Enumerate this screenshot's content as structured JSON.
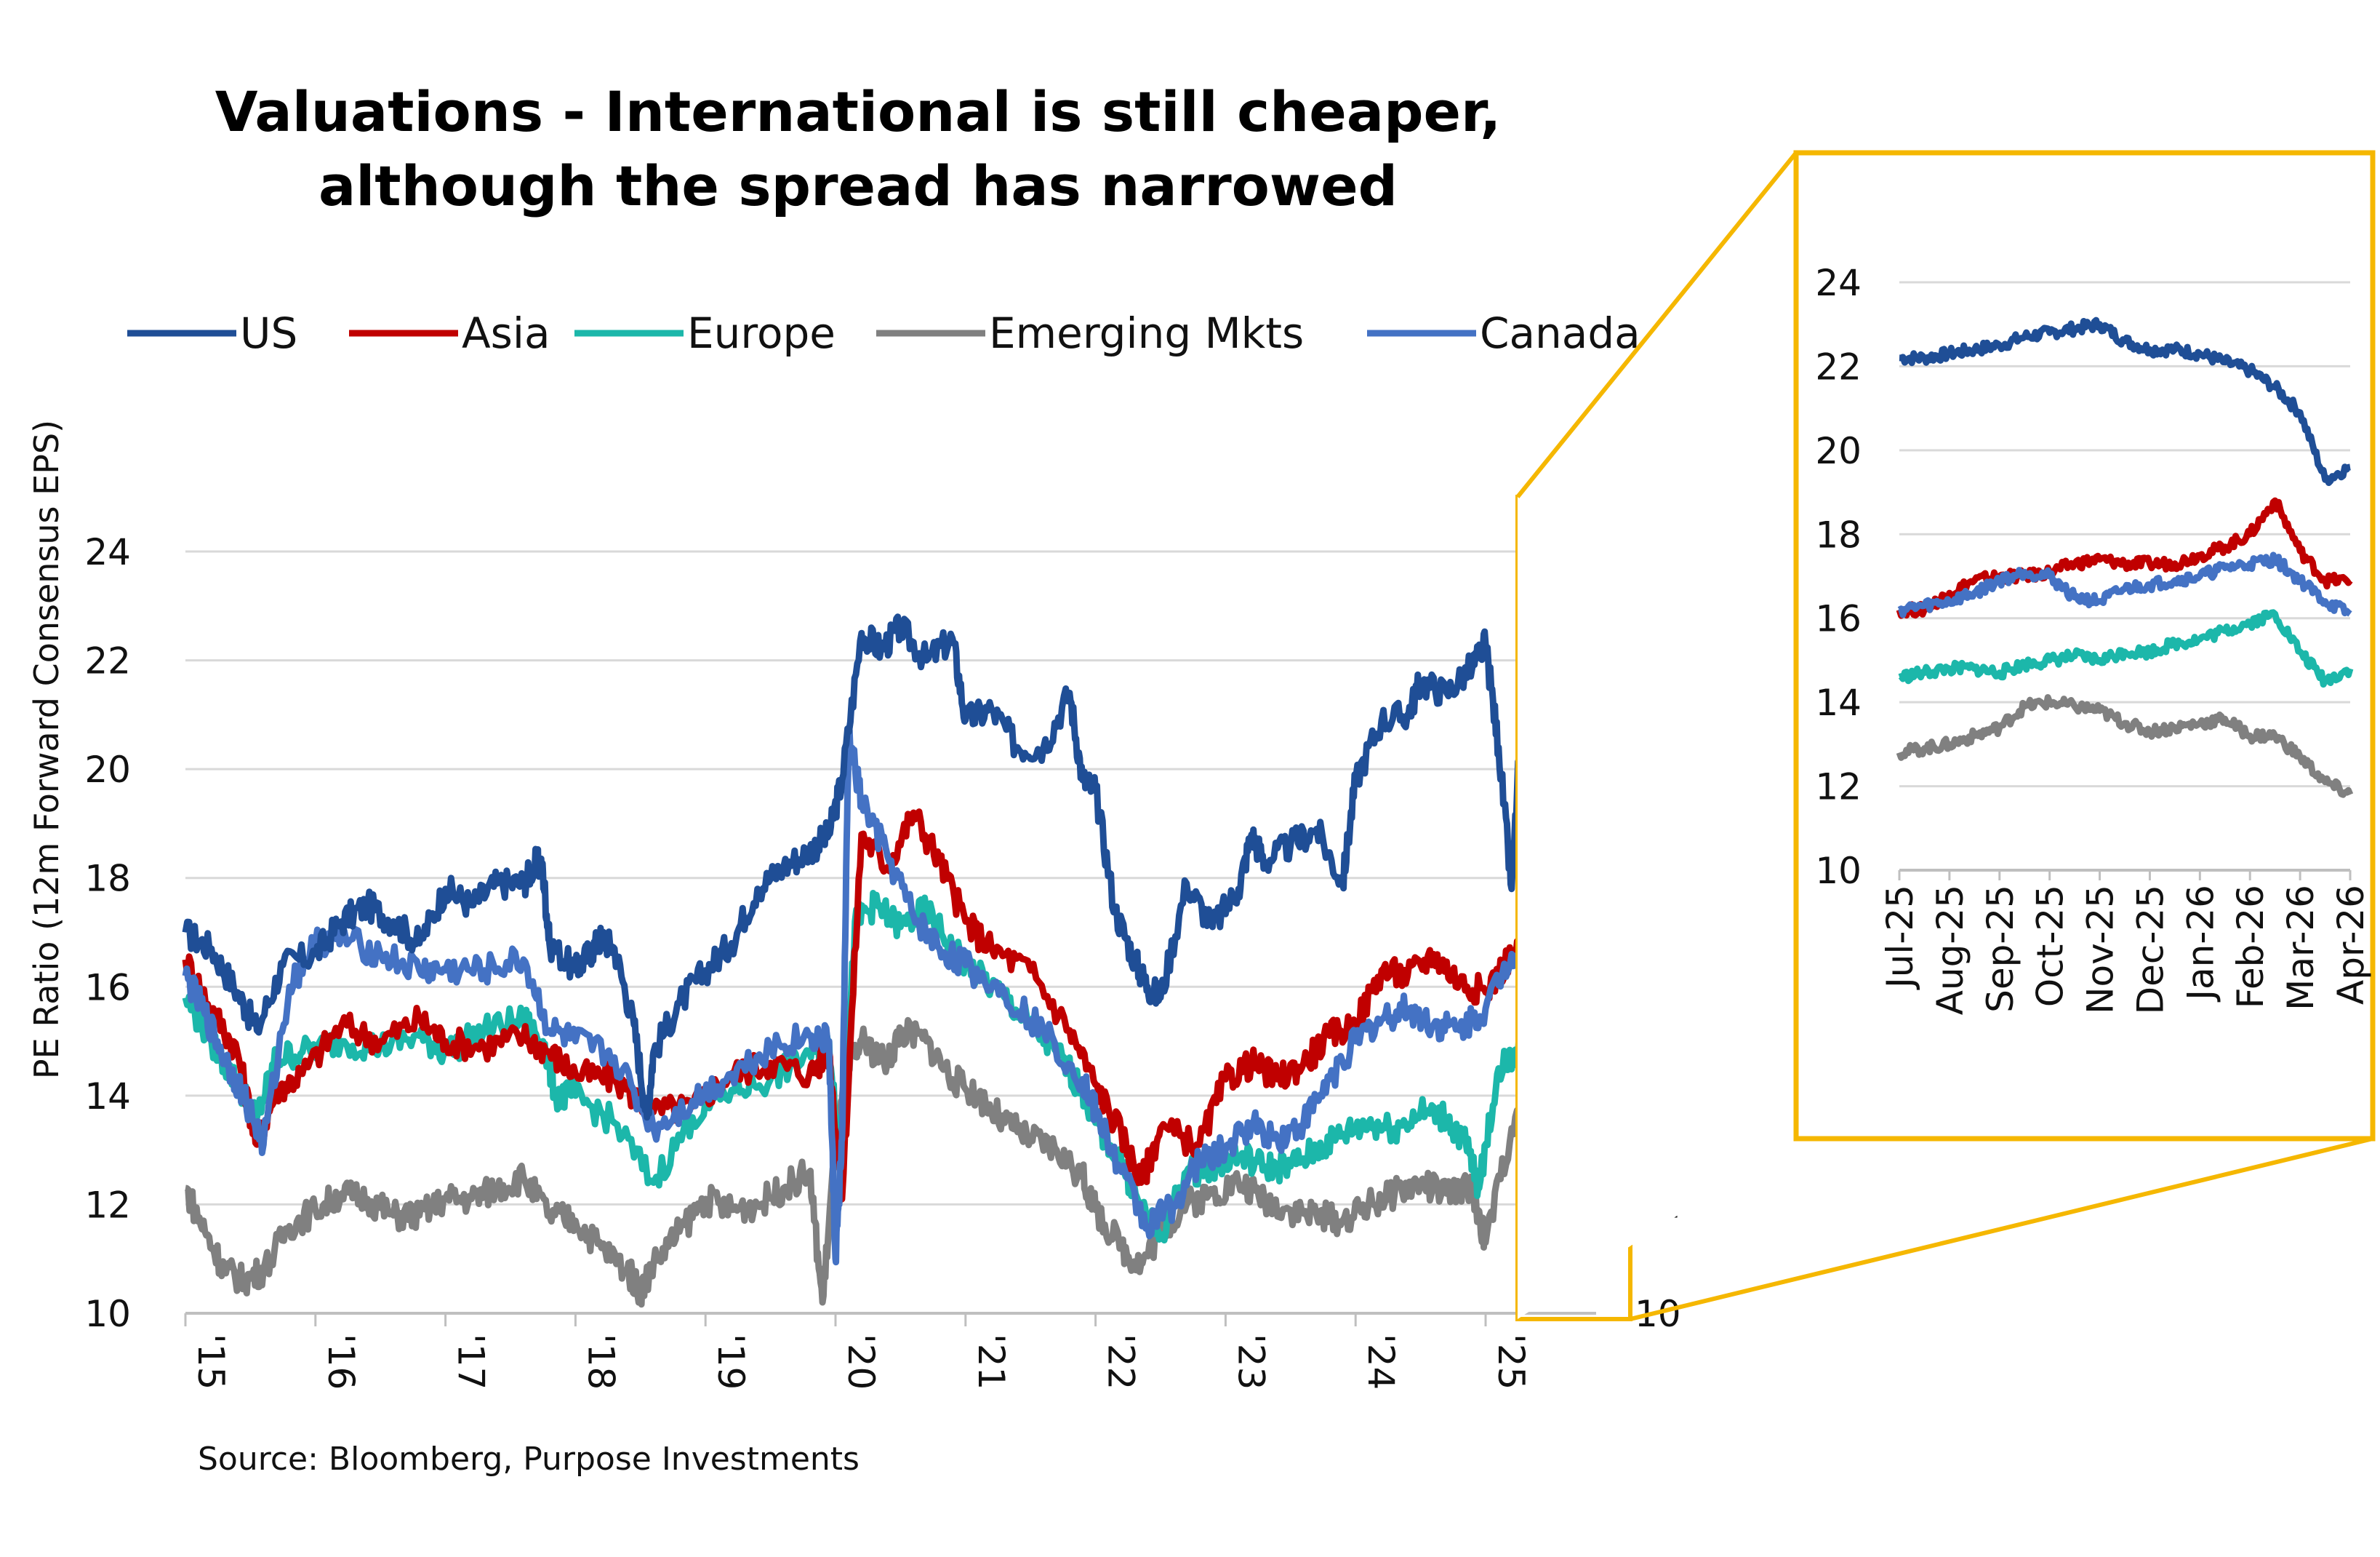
{
  "chart_data": [
    {
      "type": "line",
      "title": "Valuations - International is still cheaper, although the spread has narrowed",
      "title_lines": [
        "Valuations - International is still cheaper,",
        "although the spread has narrowed"
      ],
      "ylabel": "PE Ratio  (12m Forward Consensus EPS)",
      "xlabel": "",
      "ylim": [
        10,
        24
      ],
      "yticks": [
        "10",
        "12",
        "14",
        "16",
        "18",
        "20",
        "22",
        "24"
      ],
      "right_yticks": [
        "10",
        "12",
        "14",
        "16",
        "18",
        "20",
        "22",
        "24"
      ],
      "xticks": [
        "'15",
        "'16",
        "'17",
        "'18",
        "'19",
        "'20",
        "'21",
        "'22",
        "'23",
        "'24",
        "'25"
      ],
      "grid": "horizontal",
      "legend_position": "top",
      "source": "Source: Bloomberg, Purpose Investments",
      "series": [
        {
          "name": "US",
          "color": "#1F4E96",
          "x": [
            2015.0,
            2015.2,
            2015.4,
            2015.55,
            2015.75,
            2016.0,
            2016.2,
            2016.4,
            2016.6,
            2016.8,
            2017.0,
            2017.2,
            2017.4,
            2017.6,
            2017.7,
            2017.75,
            2017.8,
            2018.0,
            2018.1,
            2018.2,
            2018.3,
            2018.45,
            2018.55,
            2018.6,
            2018.8,
            2019.0,
            2019.2,
            2019.4,
            2019.6,
            2019.8,
            2019.95,
            2020.05,
            2020.2,
            2020.35,
            2020.5,
            2020.7,
            2020.9,
            2021.0,
            2021.2,
            2021.4,
            2021.6,
            2021.8,
            2021.9,
            2022.0,
            2022.15,
            2022.3,
            2022.4,
            2022.5,
            2022.7,
            2022.9,
            2023.1,
            2023.2,
            2023.3,
            2023.5,
            2023.7,
            2023.9,
            2024.0,
            2024.2,
            2024.4,
            2024.5,
            2024.7,
            2024.9,
            2025.0,
            2025.1,
            2025.2,
            2025.3,
            2025.4,
            2025.55,
            2025.7,
            2025.75,
            2025.8
          ],
          "values": [
            17.0,
            16.7,
            15.9,
            15.2,
            16.4,
            16.6,
            17.2,
            17.5,
            17.2,
            16.8,
            17.8,
            17.5,
            17.9,
            17.9,
            18.3,
            18.1,
            16.8,
            16.3,
            16.6,
            16.9,
            16.7,
            15.3,
            13.6,
            14.8,
            15.7,
            16.3,
            16.8,
            17.8,
            18.2,
            18.5,
            18.8,
            19.8,
            22.5,
            22.2,
            22.6,
            22.0,
            22.4,
            20.9,
            21.1,
            20.4,
            20.4,
            21.4,
            19.8,
            19.6,
            17.4,
            16.5,
            16.0,
            15.8,
            17.9,
            17.1,
            17.8,
            18.8,
            18.3,
            18.6,
            18.9,
            17.9,
            19.8,
            20.9,
            21.0,
            21.6,
            21.4,
            21.9,
            22.3,
            20.4,
            17.8,
            22.0,
            22.7,
            22.9,
            22.3,
            21.1,
            19.3
          ]
        },
        {
          "name": "Asia",
          "color": "#C00000",
          "x": [
            2015.0,
            2015.2,
            2015.4,
            2015.55,
            2015.7,
            2015.9,
            2016.2,
            2016.5,
            2016.8,
            2017.0,
            2017.3,
            2017.6,
            2017.8,
            2018.0,
            2018.3,
            2018.6,
            2018.9,
            2019.2,
            2019.5,
            2019.8,
            2019.95,
            2020.05,
            2020.2,
            2020.4,
            2020.6,
            2020.8,
            2021.0,
            2021.2,
            2021.5,
            2021.8,
            2022.0,
            2022.2,
            2022.35,
            2022.5,
            2022.8,
            2023.0,
            2023.2,
            2023.4,
            2023.6,
            2023.8,
            2024.0,
            2024.2,
            2024.4,
            2024.6,
            2024.8,
            2025.0,
            2025.2,
            2025.4,
            2025.6,
            2025.7,
            2025.8
          ],
          "values": [
            16.5,
            15.6,
            14.8,
            13.1,
            14.1,
            14.4,
            15.3,
            15.0,
            15.4,
            15.0,
            14.9,
            15.1,
            14.8,
            14.4,
            14.3,
            13.7,
            13.8,
            14.4,
            14.6,
            14.4,
            14.8,
            12.1,
            18.8,
            18.2,
            19.2,
            18.3,
            17.2,
            16.7,
            16.3,
            15.2,
            14.2,
            13.3,
            12.4,
            13.4,
            13.1,
            14.3,
            14.6,
            14.3,
            14.6,
            15.1,
            15.3,
            16.3,
            16.2,
            16.6,
            16.1,
            15.9,
            16.6,
            16.9,
            17.3,
            18.2,
            16.4
          ]
        },
        {
          "name": "Europe",
          "color": "#1CB7AA",
          "x": [
            2015.0,
            2015.2,
            2015.4,
            2015.55,
            2015.7,
            2015.9,
            2016.2,
            2016.5,
            2016.8,
            2017.0,
            2017.3,
            2017.6,
            2017.75,
            2017.85,
            2018.0,
            2018.3,
            2018.6,
            2018.9,
            2019.2,
            2019.5,
            2019.8,
            2019.95,
            2020.05,
            2020.15,
            2020.3,
            2020.5,
            2020.7,
            2020.9,
            2021.1,
            2021.3,
            2021.5,
            2021.7,
            2021.9,
            2022.0,
            2022.2,
            2022.35,
            2022.5,
            2022.7,
            2022.9,
            2023.1,
            2023.3,
            2023.5,
            2023.7,
            2023.9,
            2024.1,
            2024.3,
            2024.5,
            2024.7,
            2024.85,
            2024.95,
            2025.1,
            2025.3,
            2025.5,
            2025.65,
            2025.75,
            2025.8
          ],
          "values": [
            15.8,
            15.0,
            14.2,
            13.6,
            14.7,
            14.8,
            15.0,
            14.9,
            15.1,
            14.8,
            15.2,
            15.4,
            15.0,
            14.0,
            14.0,
            13.5,
            12.4,
            13.6,
            14.1,
            14.3,
            14.8,
            15.0,
            12.5,
            17.2,
            17.5,
            17.1,
            17.4,
            16.7,
            16.2,
            15.8,
            15.3,
            14.8,
            14.1,
            13.5,
            12.8,
            11.9,
            11.4,
            12.6,
            12.7,
            12.9,
            12.7,
            12.7,
            13.0,
            13.3,
            13.5,
            13.4,
            13.7,
            13.6,
            13.1,
            12.3,
            14.5,
            14.9,
            15.3,
            15.8,
            16.0,
            14.6
          ]
        },
        {
          "name": "Emerging Mkts",
          "color": "#808080",
          "x": [
            2015.0,
            2015.15,
            2015.3,
            2015.45,
            2015.6,
            2015.8,
            2016.0,
            2016.2,
            2016.4,
            2016.6,
            2016.8,
            2017.0,
            2017.2,
            2017.4,
            2017.6,
            2017.8,
            2018.0,
            2018.2,
            2018.4,
            2018.5,
            2018.6,
            2018.8,
            2019.0,
            2019.2,
            2019.4,
            2019.6,
            2019.8,
            2019.9,
            2020.0,
            2020.1,
            2020.2,
            2020.4,
            2020.5,
            2020.7,
            2020.9,
            2021.1,
            2021.3,
            2021.5,
            2021.7,
            2021.9,
            2022.0,
            2022.2,
            2022.35,
            2022.5,
            2022.7,
            2022.9,
            2023.1,
            2023.3,
            2023.5,
            2023.7,
            2023.9,
            2024.1,
            2024.3,
            2024.5,
            2024.7,
            2024.9,
            2025.0,
            2025.2,
            2025.4,
            2025.5,
            2025.6,
            2025.7,
            2025.8
          ],
          "values": [
            12.3,
            11.5,
            10.8,
            10.6,
            10.8,
            11.6,
            11.9,
            12.2,
            12.1,
            11.8,
            11.8,
            12.1,
            12.1,
            12.3,
            12.5,
            11.8,
            11.7,
            11.2,
            10.8,
            10.4,
            10.9,
            11.5,
            12.1,
            11.9,
            12.0,
            12.3,
            12.6,
            10.2,
            13.1,
            14.5,
            15.0,
            14.6,
            15.2,
            15.0,
            14.3,
            14.0,
            13.5,
            13.2,
            13.0,
            12.5,
            11.9,
            11.2,
            10.9,
            11.5,
            12.0,
            12.2,
            12.4,
            12.1,
            11.9,
            11.8,
            11.7,
            12.0,
            12.2,
            12.4,
            12.2,
            12.3,
            11.3,
            13.4,
            13.8,
            13.6,
            13.3,
            13.0,
            11.8
          ]
        },
        {
          "name": "Canada",
          "color": "#4472C4",
          "x": [
            2015.0,
            2015.15,
            2015.3,
            2015.45,
            2015.6,
            2015.8,
            2016.0,
            2016.2,
            2016.5,
            2016.8,
            2017.0,
            2017.3,
            2017.6,
            2017.8,
            2018.0,
            2018.3,
            2018.6,
            2018.9,
            2019.2,
            2019.5,
            2019.8,
            2019.95,
            2020.0,
            2020.05,
            2020.1,
            2020.2,
            2020.4,
            2020.6,
            2020.8,
            2021.0,
            2021.3,
            2021.6,
            2021.9,
            2022.0,
            2022.2,
            2022.4,
            2022.6,
            2022.8,
            2023.0,
            2023.2,
            2023.4,
            2023.6,
            2023.8,
            2024.0,
            2024.2,
            2024.4,
            2024.6,
            2024.8,
            2025.0,
            2025.2,
            2025.4,
            2025.6,
            2025.7,
            2025.8
          ],
          "values": [
            16.2,
            15.5,
            14.7,
            14.0,
            13.1,
            16.0,
            16.8,
            16.9,
            16.6,
            16.3,
            16.3,
            16.3,
            16.5,
            15.2,
            15.0,
            14.7,
            13.4,
            13.9,
            14.4,
            14.9,
            15.1,
            15.0,
            11.0,
            13.2,
            20.6,
            19.4,
            18.4,
            17.3,
            16.7,
            16.4,
            15.9,
            15.2,
            14.3,
            13.7,
            12.6,
            11.6,
            12.0,
            12.8,
            13.0,
            13.5,
            13.2,
            13.5,
            14.3,
            15.0,
            15.4,
            15.6,
            15.3,
            15.2,
            15.6,
            16.6,
            16.9,
            17.3,
            16.9,
            16.3
          ]
        }
      ]
    },
    {
      "type": "line",
      "title": "",
      "ylim": [
        10,
        24
      ],
      "yticks": [
        "10",
        "12",
        "14",
        "16",
        "18",
        "20",
        "22",
        "24"
      ],
      "xticks": [
        "Jul-25",
        "Aug-25",
        "Sep-25",
        "Oct-25",
        "Nov-25",
        "Dec-25",
        "Jan-26",
        "Feb-26",
        "Mar-26",
        "Apr-26"
      ],
      "grid": "horizontal",
      "series": [
        {
          "name": "US",
          "color": "#1F4E96",
          "x": [
            0,
            0.5,
            1,
            1.5,
            2,
            2.5,
            3,
            3.5,
            4,
            4.5,
            5,
            5.5,
            6,
            6.5,
            7,
            7.5,
            8,
            8.5,
            9
          ],
          "values": [
            22.2,
            22.2,
            22.3,
            22.4,
            22.5,
            22.7,
            22.8,
            22.9,
            23.0,
            22.6,
            22.4,
            22.4,
            22.3,
            22.1,
            21.9,
            21.5,
            20.9,
            19.3,
            19.6
          ]
        },
        {
          "name": "Asia",
          "color": "#C00000",
          "x": [
            0,
            0.5,
            1,
            1.5,
            2,
            2.5,
            3,
            3.5,
            4,
            4.5,
            5,
            5.5,
            6,
            6.5,
            7,
            7.5,
            8,
            8.5,
            9
          ],
          "values": [
            16.2,
            16.2,
            16.6,
            16.9,
            17.0,
            17.0,
            17.1,
            17.3,
            17.4,
            17.3,
            17.3,
            17.3,
            17.5,
            17.7,
            18.0,
            18.8,
            17.6,
            16.9,
            16.9
          ]
        },
        {
          "name": "Europe",
          "color": "#1CB7AA",
          "x": [
            0,
            0.5,
            1,
            1.5,
            2,
            2.5,
            3,
            3.5,
            4,
            4.5,
            5,
            5.5,
            6,
            6.5,
            7,
            7.5,
            8,
            8.5,
            9
          ],
          "values": [
            14.6,
            14.7,
            14.8,
            14.8,
            14.7,
            14.9,
            15.0,
            15.1,
            15.0,
            15.2,
            15.2,
            15.4,
            15.5,
            15.7,
            15.9,
            16.1,
            15.2,
            14.5,
            14.8
          ]
        },
        {
          "name": "Emerging Mkts",
          "color": "#808080",
          "x": [
            0,
            0.5,
            1,
            1.5,
            2,
            2.5,
            3,
            3.5,
            4,
            4.5,
            5,
            5.5,
            6,
            6.5,
            7,
            7.5,
            8,
            8.5,
            9
          ],
          "values": [
            12.8,
            12.9,
            13.0,
            13.2,
            13.4,
            13.9,
            14.0,
            13.9,
            13.8,
            13.5,
            13.3,
            13.4,
            13.5,
            13.6,
            13.2,
            13.2,
            12.7,
            12.1,
            11.8
          ]
        },
        {
          "name": "Canada",
          "color": "#4472C4",
          "x": [
            0,
            0.5,
            1,
            1.5,
            2,
            2.5,
            3,
            3.5,
            4,
            4.5,
            5,
            5.5,
            6,
            6.5,
            7,
            7.5,
            8,
            8.5,
            9
          ],
          "values": [
            16.2,
            16.3,
            16.4,
            16.6,
            16.9,
            17.1,
            17.0,
            16.5,
            16.4,
            16.7,
            16.8,
            16.9,
            17.0,
            17.2,
            17.3,
            17.4,
            16.9,
            16.4,
            16.1
          ]
        }
      ]
    }
  ]
}
